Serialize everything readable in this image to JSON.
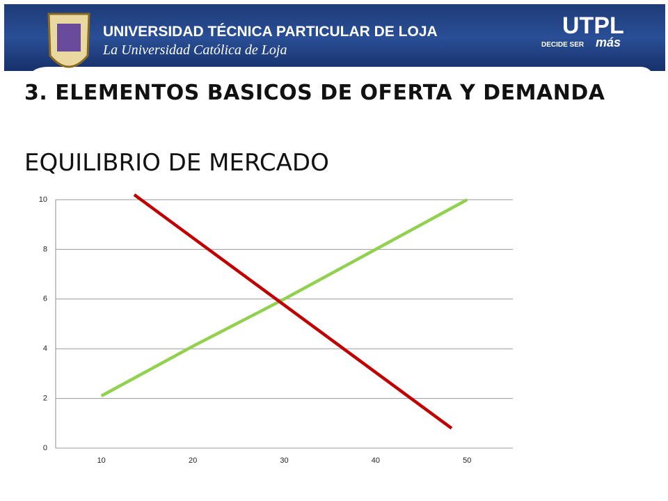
{
  "header": {
    "university": "UNIVERSIDAD TÉCNICA PARTICULAR DE LOJA",
    "tagline": "La Universidad Católica de Loja",
    "brand": "UTPL",
    "motto_prefix": "DECIDE SER",
    "motto_word": "más"
  },
  "slide": {
    "title": "3. ELEMENTOS BASICOS DE OFERTA Y DEMANDA",
    "subtitle": "EQUILIBRIO DE MERCADO"
  },
  "chart_data": {
    "type": "line",
    "series": [
      {
        "color": "#92d050",
        "x": [
          10,
          20,
          30,
          40,
          50
        ],
        "values": [
          2.1,
          4.1,
          6.0,
          8.0,
          10.0
        ]
      },
      {
        "color": "#c00000",
        "x": [
          13.6,
          48.3
        ],
        "values": [
          10.2,
          0.8
        ]
      }
    ],
    "xlim": [
      5,
      55
    ],
    "xticks": [
      10,
      20,
      30,
      40,
      50
    ],
    "ylim": [
      0,
      10
    ],
    "yticks": [
      0,
      2,
      4,
      6,
      8,
      10
    ],
    "grid": true
  }
}
